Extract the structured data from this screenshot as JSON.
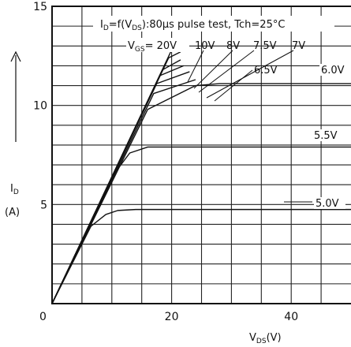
{
  "chart_data": {
    "type": "line",
    "xlim": [
      0,
      50
    ],
    "ylim": [
      0,
      15
    ],
    "x_ticks": [
      0,
      20,
      40
    ],
    "y_ticks": [
      5,
      10,
      15
    ],
    "grid": true,
    "xlabel": {
      "main": "V",
      "sub": "DS",
      "unit": "(V)"
    },
    "ylabel": {
      "main": "I",
      "sub": "D",
      "unit": "(A)"
    },
    "annotation": {
      "condition_prefix": "I",
      "condition_sub": "D",
      "condition_text": "=f(V",
      "condition_sub2": "DS",
      "condition_rest": "):80µs pulse test, Tch=25°C",
      "vgs_prefix": "V",
      "vgs_sub": "GS",
      "vgs_text": "= 20V"
    },
    "series": [
      {
        "name": "V_GS = 20V",
        "label": "20V",
        "x": [
          0,
          20
        ],
        "y": [
          0,
          12.8
        ]
      },
      {
        "name": "V_GS = 10V",
        "label": "10V",
        "x": [
          0,
          19.5,
          21.5
        ],
        "y": [
          0,
          12.4,
          12.7
        ]
      },
      {
        "name": "V_GS = 8V",
        "label": "8V",
        "x": [
          0,
          18.5,
          21.5
        ],
        "y": [
          0,
          11.8,
          12.3
        ]
      },
      {
        "name": "V_GS = 7.5V",
        "label": "7.5V",
        "x": [
          0,
          18.0,
          22.0
        ],
        "y": [
          0,
          11.5,
          12.0
        ]
      },
      {
        "name": "V_GS = 7V",
        "label": "7V",
        "x": [
          0,
          17.5,
          23.0
        ],
        "y": [
          0,
          11.1,
          11.7
        ]
      },
      {
        "name": "V_GS = 6.5V",
        "label": "6.5V",
        "x": [
          0,
          17.0,
          24.0
        ],
        "y": [
          0,
          10.6,
          11.3
        ]
      },
      {
        "name": "V_GS = 6.0V",
        "label": "6.0V",
        "x": [
          0,
          16.0,
          24.0,
          28.0,
          50
        ],
        "y": [
          0,
          9.8,
          11.0,
          11.1,
          11.1
        ]
      },
      {
        "name": "V_GS = 5.5V",
        "label": "5.5V",
        "x": [
          0,
          10.0,
          13.0,
          16.0,
          50
        ],
        "y": [
          0,
          6.4,
          7.6,
          7.9,
          7.9
        ]
      },
      {
        "name": "V_GS = 5.0V",
        "label": "5.0V",
        "x": [
          0,
          6.5,
          9.0,
          11.0,
          14.0,
          50
        ],
        "y": [
          0,
          3.9,
          4.5,
          4.7,
          4.75,
          4.75
        ]
      }
    ]
  }
}
